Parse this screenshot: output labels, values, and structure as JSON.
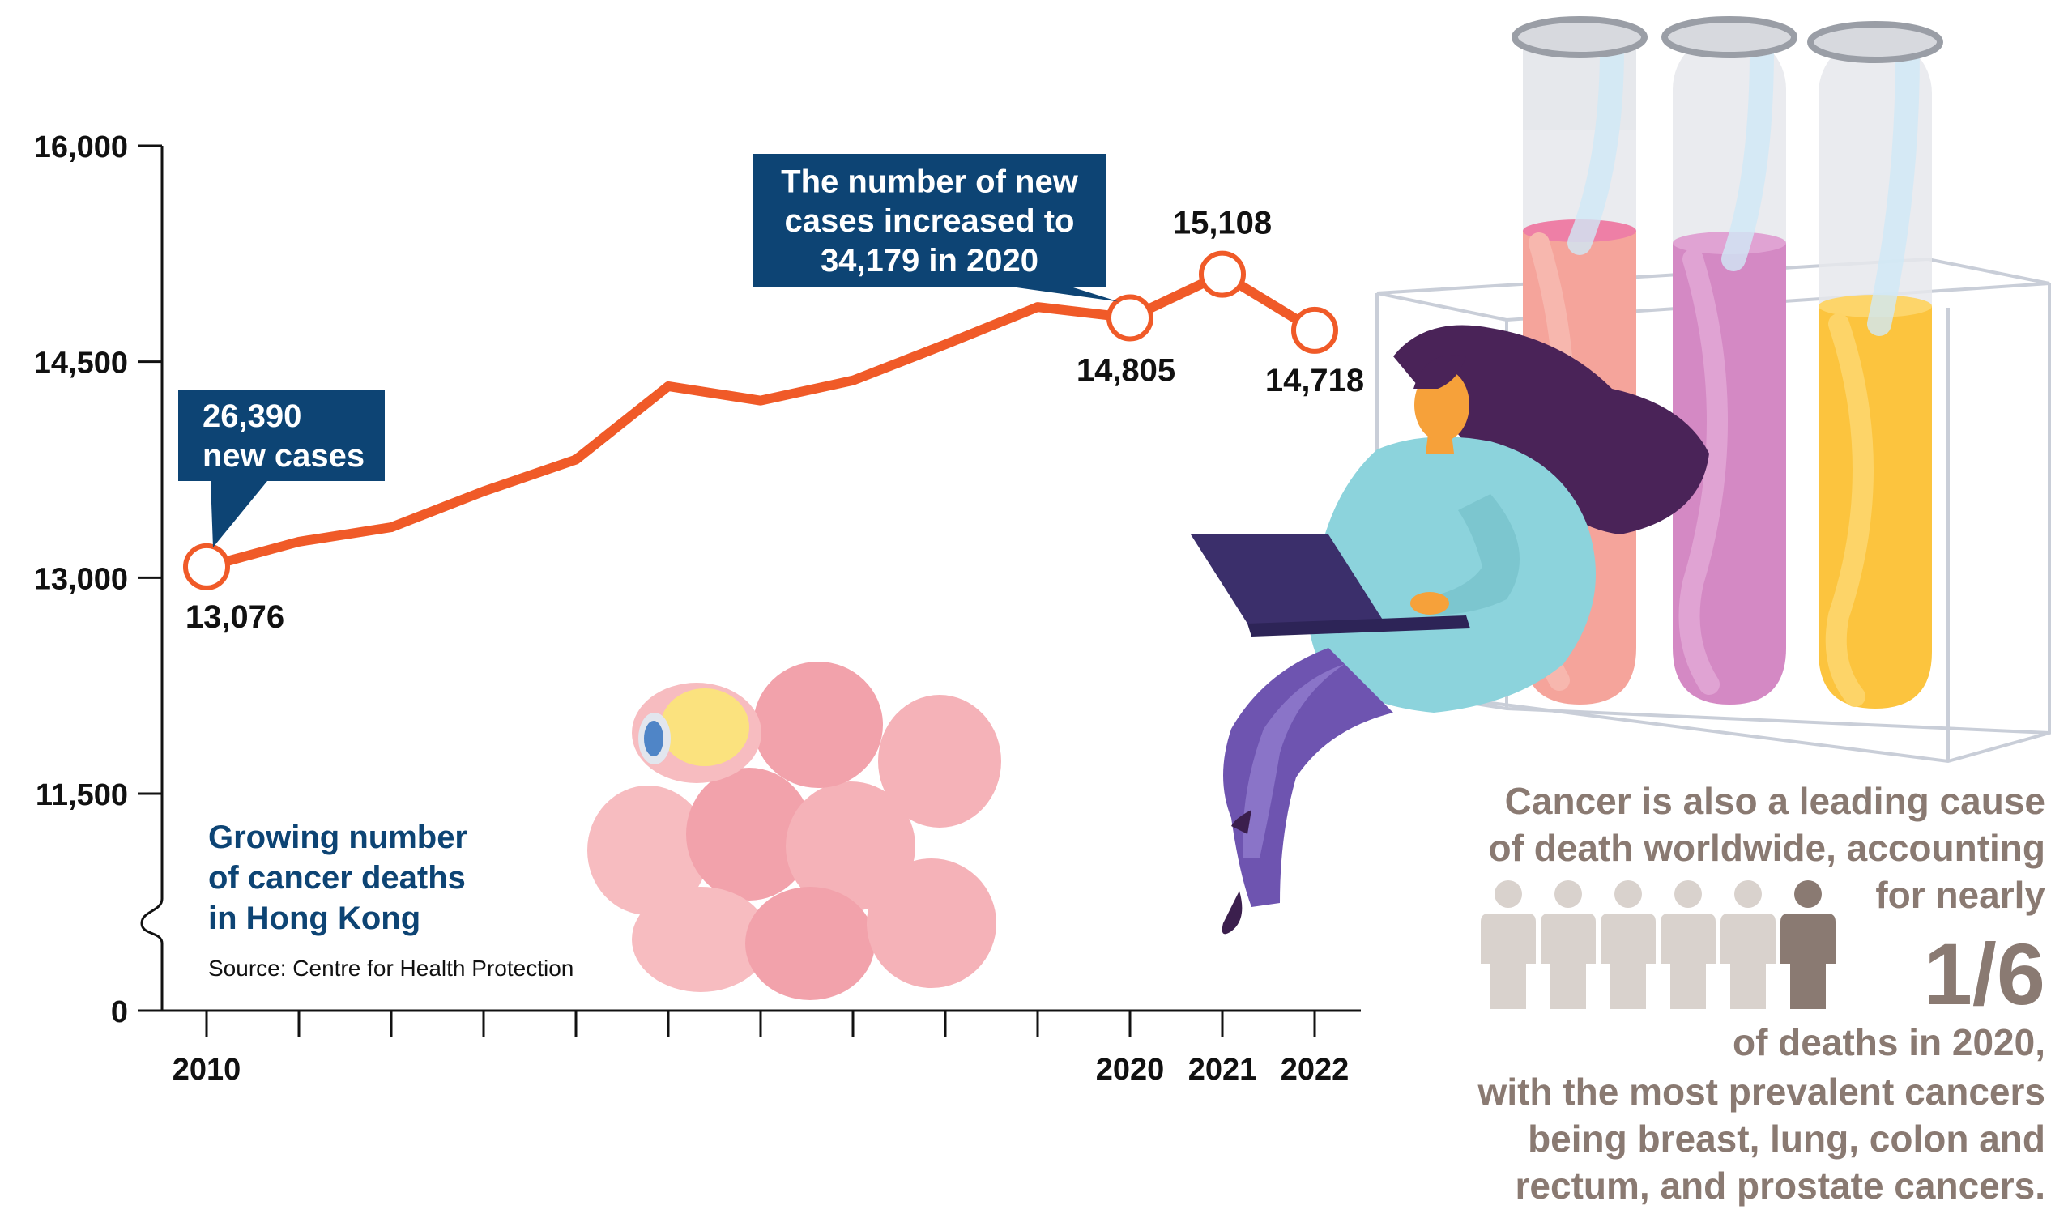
{
  "chart_data": {
    "type": "line",
    "x": [
      2010,
      2011,
      2012,
      2013,
      2014,
      2015,
      2016,
      2017,
      2018,
      2019,
      2020,
      2021,
      2022
    ],
    "values": [
      13076,
      13250,
      13350,
      13600,
      13820,
      14330,
      14230,
      14370,
      14620,
      14880,
      14805,
      15108,
      14718
    ],
    "x_tick_labels": [
      "2010",
      "",
      "",
      "",
      "",
      "",
      "",
      "",
      "",
      "",
      "2020",
      "2021",
      "2022"
    ],
    "y_ticks": [
      {
        "label": "16,000",
        "value": 16000
      },
      {
        "label": "14,500",
        "value": 14500
      },
      {
        "label": "13,000",
        "value": 13000
      },
      {
        "label": "11,500",
        "value": 11500
      },
      {
        "label": "0",
        "value": 0
      }
    ],
    "ylim": [
      11500,
      16000
    ],
    "y_axis_break": true,
    "data_labels": [
      {
        "x": 2010,
        "text": "13,076"
      },
      {
        "x": 2020,
        "text": "14,805"
      },
      {
        "x": 2021,
        "text": "15,108"
      },
      {
        "x": 2022,
        "text": "14,718"
      }
    ],
    "annotations": [
      {
        "x": 2010,
        "lines": [
          "26,390",
          "new cases"
        ]
      },
      {
        "x": 2020,
        "lines": [
          "The number of new",
          "cases increased to",
          "34,179 in 2020"
        ]
      }
    ],
    "title_lines": [
      "Growing number",
      "of cancer deaths",
      "in Hong Kong"
    ],
    "source": "Source: Centre for Health Protection",
    "grid": false,
    "colors": {
      "line": "#f05a28",
      "callout": "#0d4474",
      "title": "#0d4474"
    }
  },
  "side_text": {
    "top_lines": [
      "Cancer is also a leading cause",
      "of death worldwide, accounting",
      "for nearly"
    ],
    "fraction": "1/6",
    "bottom_lines": [
      "of deaths in 2020,",
      "with the most prevalent cancers",
      "being breast, lung, colon and",
      "rectum, and prostate cancers."
    ],
    "people_total": 6,
    "people_highlighted": 1,
    "colors": {
      "text": "#8a7a72",
      "person": "#d9d2cd",
      "person_highlight": "#8a7a72"
    }
  }
}
